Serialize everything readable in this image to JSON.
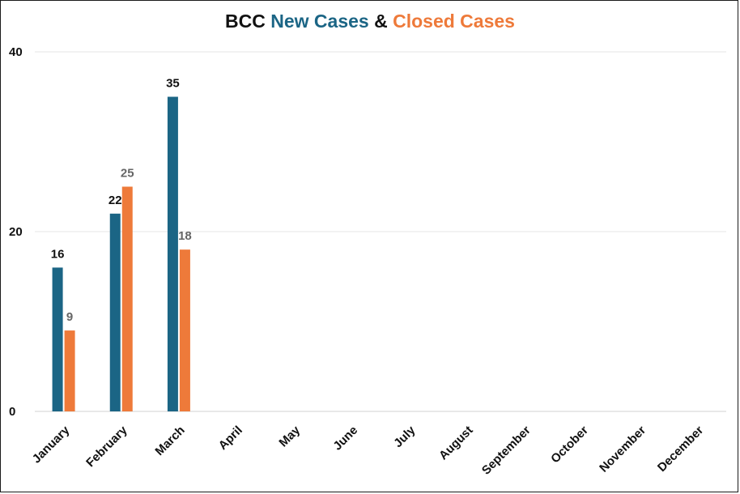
{
  "chart_data": {
    "type": "bar",
    "title_parts": [
      {
        "text": "BCC ",
        "color": "#111111"
      },
      {
        "text": "New Cases",
        "color": "#1b6585"
      },
      {
        "text": " & ",
        "color": "#111111"
      },
      {
        "text": "Closed Cases",
        "color": "#ee7a3a"
      }
    ],
    "title": "BCC New Cases & Closed Cases",
    "categories": [
      "January",
      "February",
      "March",
      "April",
      "May",
      "June",
      "July",
      "August",
      "September",
      "October",
      "November",
      "December"
    ],
    "series": [
      {
        "name": "New Cases",
        "color": "#1b6585",
        "label_color": "#111111",
        "values": [
          16,
          22,
          35,
          null,
          null,
          null,
          null,
          null,
          null,
          null,
          null,
          null
        ]
      },
      {
        "name": "Closed Cases",
        "color": "#ee7a3a",
        "label_color": "#666666",
        "values": [
          9,
          25,
          18,
          null,
          null,
          null,
          null,
          null,
          null,
          null,
          null,
          null
        ]
      }
    ],
    "ylim": [
      0,
      40
    ],
    "yticks": [
      0,
      20,
      40
    ],
    "grid": true,
    "legend": "none"
  }
}
